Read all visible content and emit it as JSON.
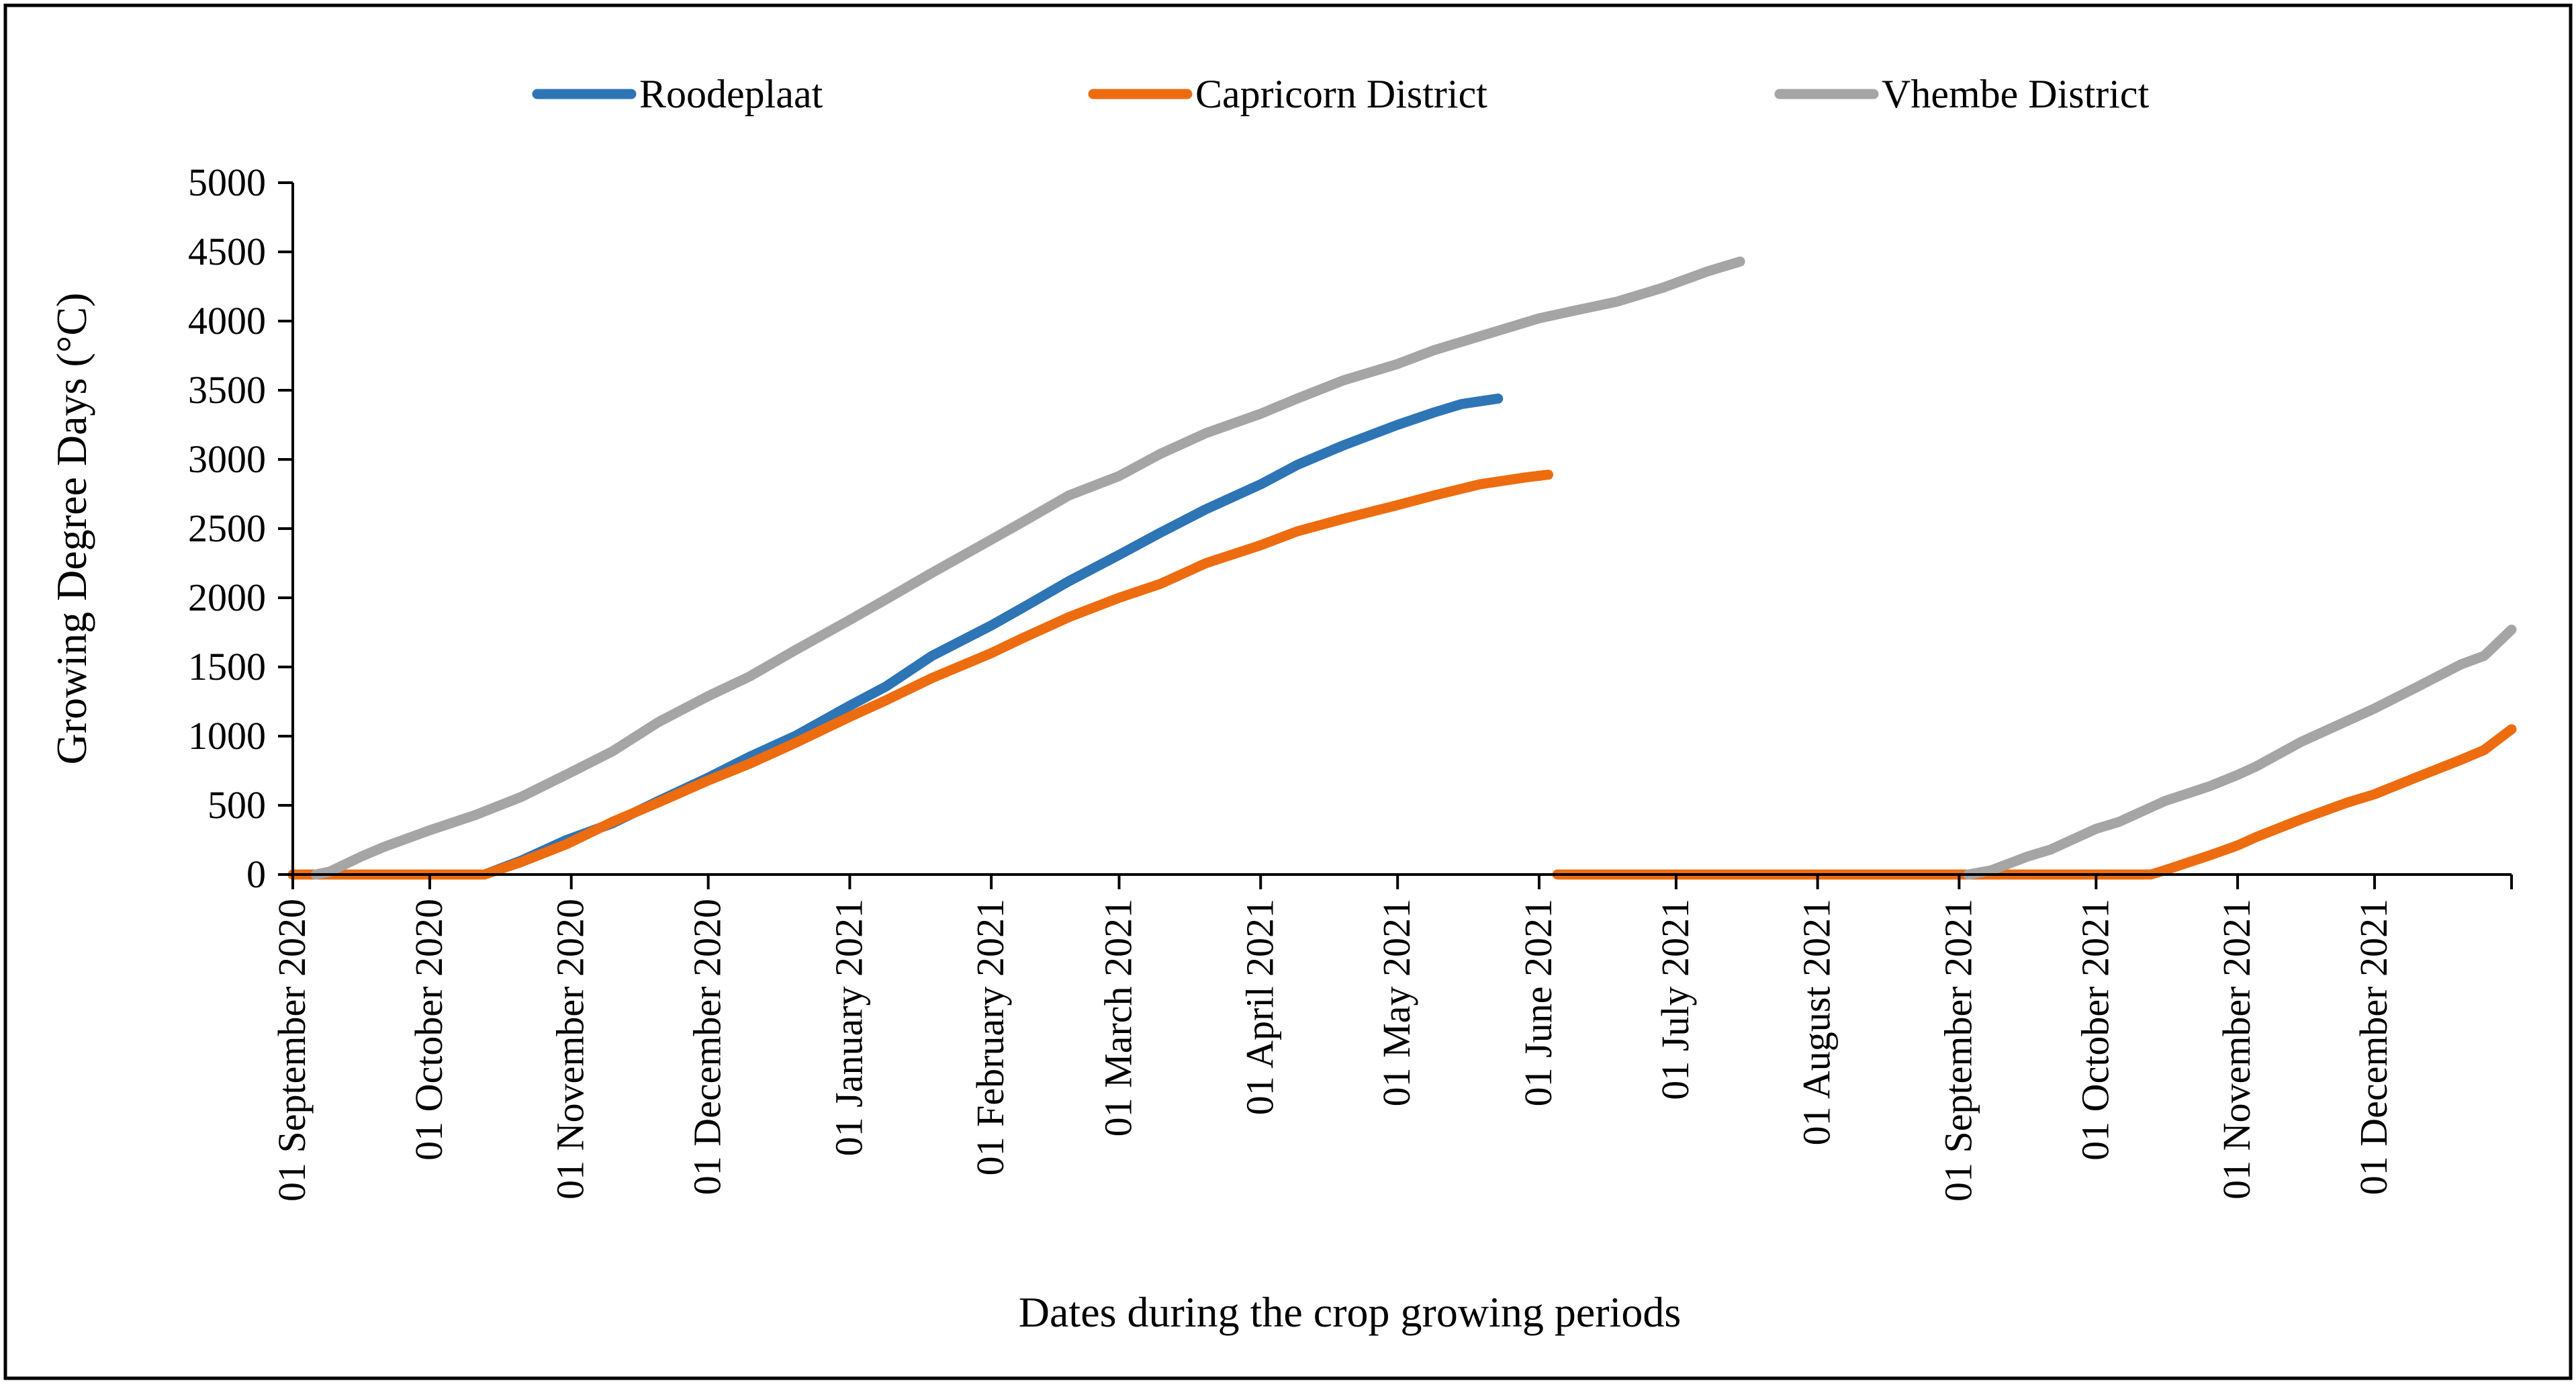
{
  "chart_data": {
    "type": "line",
    "title": "",
    "xlabel": "Dates during the crop growing periods",
    "ylabel": "Growing Degree Days (°C)",
    "ylim": [
      0,
      5000
    ],
    "yticks": [
      0,
      500,
      1000,
      1500,
      2000,
      2500,
      3000,
      3500,
      4000,
      4500,
      5000
    ],
    "x_unit": "days since 01 September 2020",
    "xlim": [
      0,
      486
    ],
    "x_tick_labels": [
      {
        "day": 0,
        "label": "01 September 2020"
      },
      {
        "day": 30,
        "label": "01 October 2020"
      },
      {
        "day": 61,
        "label": "01 November 2020"
      },
      {
        "day": 91,
        "label": "01 December 2020"
      },
      {
        "day": 122,
        "label": "01 January 2021"
      },
      {
        "day": 153,
        "label": "01 February 2021"
      },
      {
        "day": 181,
        "label": "01 March 2021"
      },
      {
        "day": 212,
        "label": "01 April 2021"
      },
      {
        "day": 242,
        "label": "01 May 2021"
      },
      {
        "day": 273,
        "label": "01 June 2021"
      },
      {
        "day": 303,
        "label": "01 July 2021"
      },
      {
        "day": 334,
        "label": "01 August 2021"
      },
      {
        "day": 365,
        "label": "01 September 2021"
      },
      {
        "day": 395,
        "label": "01 October 2021"
      },
      {
        "day": 426,
        "label": "01 November 2021"
      },
      {
        "day": 456,
        "label": "01 December 2021"
      }
    ],
    "legend_position": "top",
    "series": [
      {
        "name": "Roodeplaat",
        "color": "#2E75B6",
        "segments": [
          [
            [
              0,
              0
            ],
            [
              42,
              0
            ],
            [
              50,
              100
            ],
            [
              60,
              250
            ],
            [
              70,
              370
            ],
            [
              80,
              530
            ],
            [
              91,
              700
            ],
            [
              100,
              850
            ],
            [
              110,
              1000
            ],
            [
              122,
              1220
            ],
            [
              130,
              1360
            ],
            [
              140,
              1580
            ],
            [
              153,
              1800
            ],
            [
              160,
              1930
            ],
            [
              170,
              2120
            ],
            [
              181,
              2310
            ],
            [
              190,
              2470
            ],
            [
              200,
              2640
            ],
            [
              212,
              2820
            ],
            [
              220,
              2960
            ],
            [
              230,
              3100
            ],
            [
              242,
              3250
            ],
            [
              250,
              3340
            ],
            [
              256,
              3400
            ],
            [
              264,
              3440
            ]
          ]
        ]
      },
      {
        "name": "Capricorn District",
        "color": "#ED6C0F",
        "segments": [
          [
            [
              0,
              0
            ],
            [
              42,
              0
            ],
            [
              50,
              90
            ],
            [
              60,
              220
            ],
            [
              70,
              380
            ],
            [
              80,
              520
            ],
            [
              91,
              680
            ],
            [
              100,
              800
            ],
            [
              110,
              950
            ],
            [
              122,
              1140
            ],
            [
              130,
              1260
            ],
            [
              140,
              1420
            ],
            [
              153,
              1600
            ],
            [
              160,
              1710
            ],
            [
              170,
              1860
            ],
            [
              181,
              2000
            ],
            [
              190,
              2100
            ],
            [
              200,
              2250
            ],
            [
              212,
              2380
            ],
            [
              220,
              2480
            ],
            [
              230,
              2570
            ],
            [
              242,
              2670
            ],
            [
              250,
              2740
            ],
            [
              260,
              2820
            ],
            [
              270,
              2870
            ],
            [
              275,
              2890
            ]
          ],
          [
            [
              277,
              0
            ],
            [
              407,
              0
            ],
            [
              410,
              30
            ],
            [
              420,
              140
            ],
            [
              426,
              210
            ],
            [
              430,
              270
            ],
            [
              440,
              400
            ],
            [
              450,
              520
            ],
            [
              456,
              580
            ],
            [
              465,
              700
            ],
            [
              475,
              830
            ],
            [
              480,
              900
            ],
            [
              486,
              1050
            ]
          ]
        ]
      },
      {
        "name": "Vhembe District",
        "color": "#A5A5A5",
        "segments": [
          [
            [
              5,
              0
            ],
            [
              8,
              20
            ],
            [
              15,
              130
            ],
            [
              20,
              200
            ],
            [
              30,
              320
            ],
            [
              40,
              430
            ],
            [
              50,
              560
            ],
            [
              61,
              740
            ],
            [
              70,
              890
            ],
            [
              80,
              1100
            ],
            [
              91,
              1290
            ],
            [
              100,
              1430
            ],
            [
              110,
              1620
            ],
            [
              122,
              1840
            ],
            [
              130,
              1990
            ],
            [
              140,
              2180
            ],
            [
              153,
              2420
            ],
            [
              160,
              2550
            ],
            [
              170,
              2740
            ],
            [
              181,
              2880
            ],
            [
              190,
              3040
            ],
            [
              200,
              3190
            ],
            [
              212,
              3330
            ],
            [
              220,
              3440
            ],
            [
              230,
              3570
            ],
            [
              242,
              3690
            ],
            [
              250,
              3790
            ],
            [
              260,
              3890
            ],
            [
              273,
              4020
            ],
            [
              280,
              4070
            ],
            [
              290,
              4140
            ],
            [
              300,
              4240
            ],
            [
              310,
              4360
            ],
            [
              317,
              4430
            ]
          ],
          [
            [
              367,
              0
            ],
            [
              372,
              30
            ],
            [
              380,
              130
            ],
            [
              385,
              180
            ],
            [
              395,
              330
            ],
            [
              400,
              380
            ],
            [
              410,
              530
            ],
            [
              420,
              640
            ],
            [
              426,
              720
            ],
            [
              430,
              780
            ],
            [
              440,
              960
            ],
            [
              450,
              1110
            ],
            [
              456,
              1200
            ],
            [
              465,
              1350
            ],
            [
              475,
              1520
            ],
            [
              480,
              1580
            ],
            [
              486,
              1770
            ]
          ]
        ]
      }
    ]
  }
}
